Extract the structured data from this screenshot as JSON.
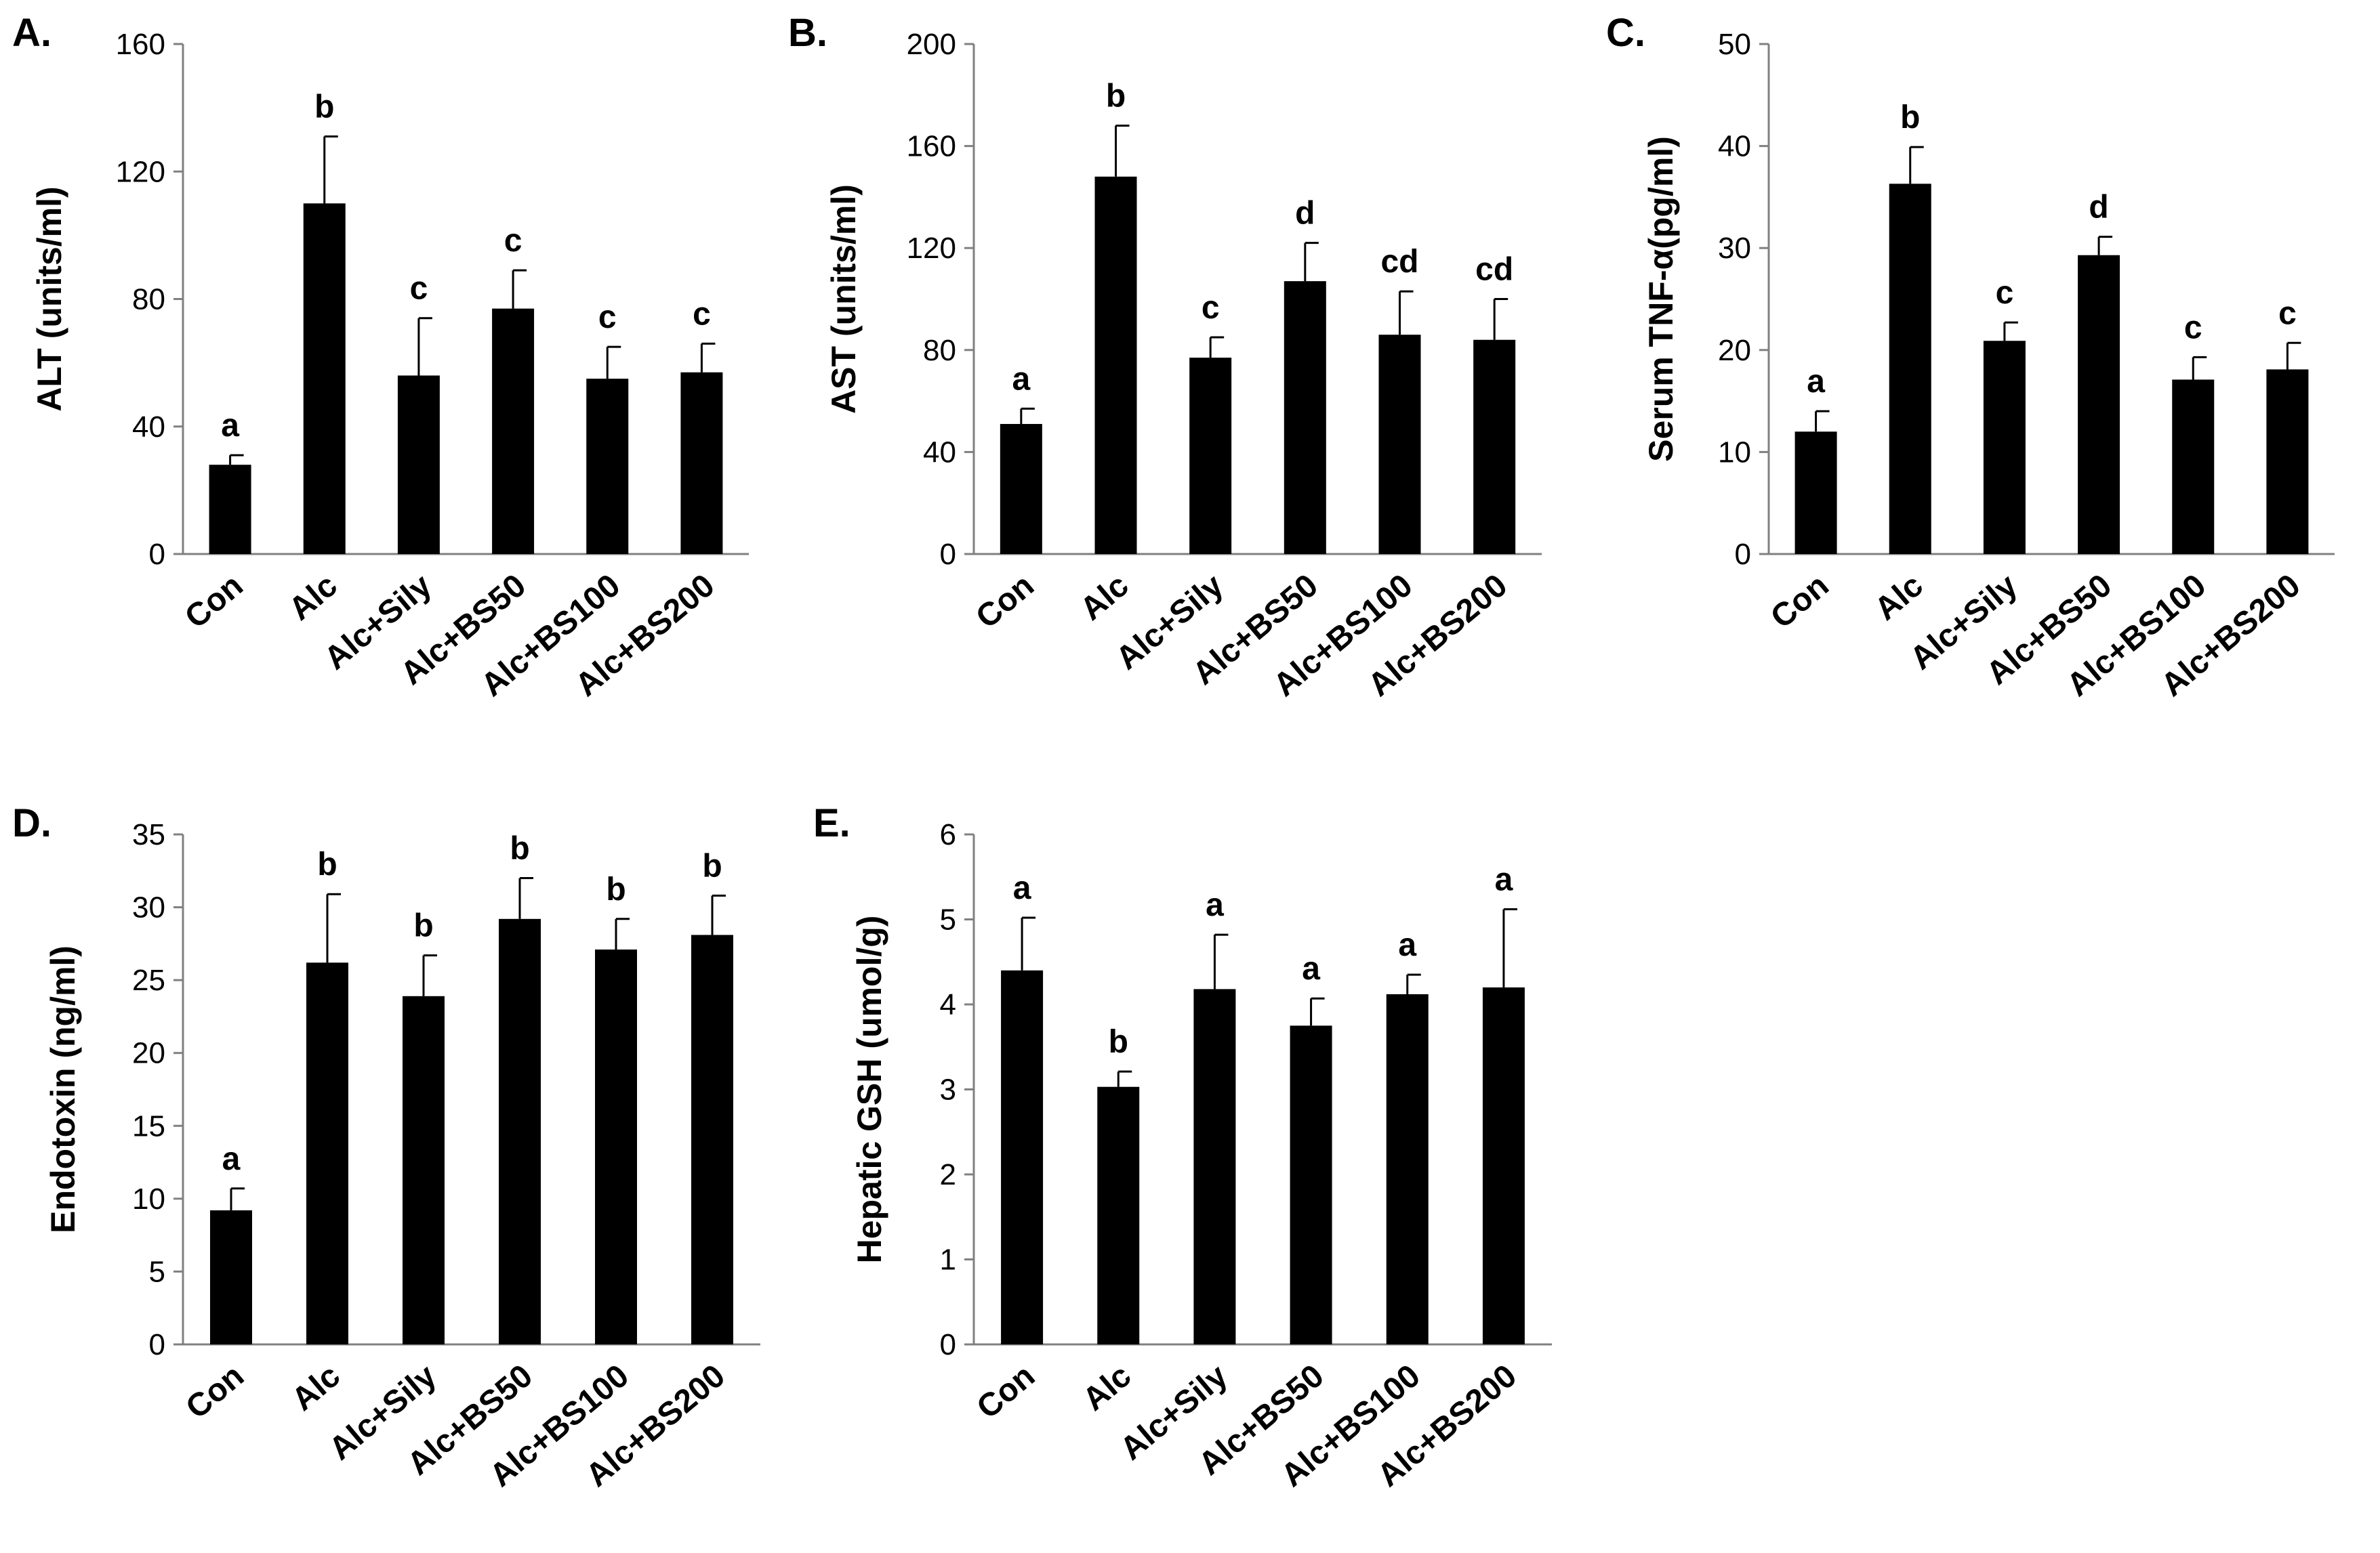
{
  "figure": {
    "background": "#ffffff",
    "bar_color": "#000000"
  },
  "chart_data": [
    {
      "panel": "A.",
      "type": "bar",
      "categories": [
        "Con",
        "Alc",
        "Alc+Sily",
        "Alc+BS50",
        "Alc+BS100",
        "Alc+BS200"
      ],
      "values": [
        28,
        110,
        56,
        77,
        55,
        57
      ],
      "errors": [
        3,
        21,
        18,
        12,
        10,
        9
      ],
      "significance": [
        "a",
        "b",
        "c",
        "c",
        "c",
        "c"
      ],
      "ylabel": "ALT (units/ml)",
      "ylim": [
        0,
        160
      ],
      "yticks": [
        0,
        40,
        80,
        120,
        160
      ],
      "grid": false
    },
    {
      "panel": "B.",
      "type": "bar",
      "categories": [
        "Con",
        "Alc",
        "Alc+Sily",
        "Alc+BS50",
        "Alc+BS100",
        "Alc+BS200"
      ],
      "values": [
        51,
        148,
        77,
        107,
        86,
        84
      ],
      "errors": [
        6,
        20,
        8,
        15,
        17,
        16
      ],
      "significance": [
        "a",
        "b",
        "c",
        "d",
        "cd",
        "cd"
      ],
      "ylabel": "AST (units/ml)",
      "ylim": [
        0,
        200
      ],
      "yticks": [
        0,
        40,
        80,
        120,
        160,
        200
      ],
      "grid": false
    },
    {
      "panel": "C.",
      "type": "bar",
      "categories": [
        "Con",
        "Alc",
        "Alc+Sily",
        "Alc+BS50",
        "Alc+BS100",
        "Alc+BS200"
      ],
      "values": [
        12,
        36.3,
        20.9,
        29.3,
        17.1,
        18.1
      ],
      "errors": [
        2,
        3.6,
        1.8,
        1.8,
        2.2,
        2.6
      ],
      "significance": [
        "a",
        "b",
        "c",
        "d",
        "c",
        "c"
      ],
      "ylabel": "Serum TNF-α(pg/ml)",
      "ylim": [
        0,
        50
      ],
      "yticks": [
        0,
        10,
        20,
        30,
        40,
        50
      ],
      "grid": false
    },
    {
      "panel": "D.",
      "type": "bar",
      "categories": [
        "Con",
        "Alc",
        "Alc+Sily",
        "Alc+BS50",
        "Alc+BS100",
        "Alc+BS200"
      ],
      "values": [
        9.2,
        26.2,
        23.9,
        29.2,
        27.1,
        28.1
      ],
      "errors": [
        1.5,
        4.7,
        2.8,
        2.8,
        2.1,
        2.7
      ],
      "significance": [
        "a",
        "b",
        "b",
        "b",
        "b",
        "b"
      ],
      "ylabel": "Endotoxin (ng/ml)",
      "ylim": [
        0,
        35
      ],
      "yticks": [
        0,
        5,
        10,
        15,
        20,
        25,
        30,
        35
      ],
      "grid": false
    },
    {
      "panel": "E.",
      "type": "bar",
      "categories": [
        "Con",
        "Alc",
        "Alc+Sily",
        "Alc+BS50",
        "Alc+BS100",
        "Alc+BS200"
      ],
      "values": [
        4.4,
        3.03,
        4.18,
        3.75,
        4.12,
        4.2
      ],
      "errors": [
        0.62,
        0.18,
        0.64,
        0.32,
        0.23,
        0.92
      ],
      "significance": [
        "a",
        "b",
        "a",
        "a",
        "a",
        "a"
      ],
      "ylabel": "Hepatic GSH (umol/g)",
      "ylim": [
        0,
        6
      ],
      "yticks": [
        0,
        1,
        2,
        3,
        4,
        5,
        6
      ],
      "grid": false
    }
  ]
}
